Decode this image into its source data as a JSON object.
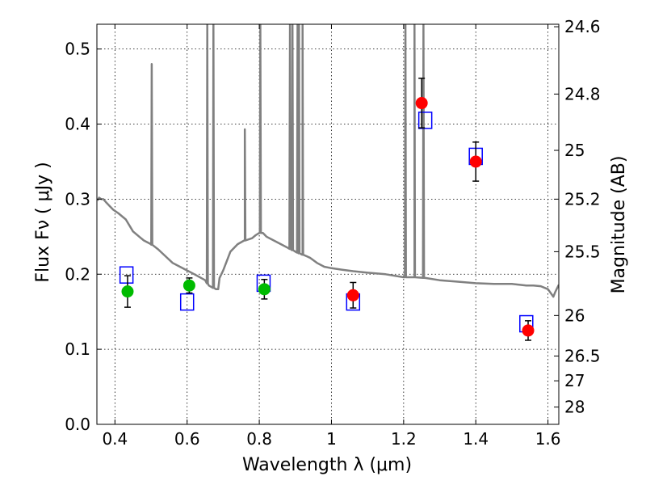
{
  "chart_data": {
    "type": "scatter",
    "xlabel": "Wavelength  λ (μm)",
    "ylabel": "Flux  Fν  ( μJy )",
    "right_ylabel": "Magnitude (AB)",
    "xlim": [
      0.35,
      1.63
    ],
    "ylim": [
      0.0,
      0.533
    ],
    "x_ticks": [
      0.4,
      0.6,
      0.8,
      1.0,
      1.2,
      1.4,
      1.6
    ],
    "x_tick_labels": [
      "0.4",
      "0.6",
      "0.8",
      "1",
      "1.2",
      "1.4",
      "1.6"
    ],
    "y_ticks": [
      0.0,
      0.1,
      0.2,
      0.3,
      0.4,
      0.5
    ],
    "y_tick_labels": [
      "0.0",
      "0.1",
      "0.2",
      "0.3",
      "0.4",
      "0.5"
    ],
    "right_ticks": [
      {
        "flux": 0.5297,
        "label": "24.6"
      },
      {
        "flux": 0.44,
        "label": "24.8"
      },
      {
        "flux": 0.365,
        "label": "25"
      },
      {
        "flux": 0.3,
        "label": "25.2"
      },
      {
        "flux": 0.23,
        "label": "25.5"
      },
      {
        "flux": 0.145,
        "label": "26"
      },
      {
        "flux": 0.091,
        "label": "26.5"
      },
      {
        "flux": 0.058,
        "label": "27"
      },
      {
        "flux": 0.023,
        "label": "28"
      }
    ],
    "grid": true,
    "colors": {
      "spectrum": "#808080",
      "optical_points": "#00bb00",
      "nir_points": "#ff0000",
      "model_boxes": "#0000ff",
      "error_bars": "#000000"
    },
    "spectrum": {
      "continuum": [
        [
          0.352,
          0.298
        ],
        [
          0.356,
          0.302
        ],
        [
          0.362,
          0.3
        ],
        [
          0.368,
          0.3
        ],
        [
          0.375,
          0.296
        ],
        [
          0.385,
          0.291
        ],
        [
          0.395,
          0.286
        ],
        [
          0.41,
          0.281
        ],
        [
          0.43,
          0.273
        ],
        [
          0.45,
          0.257
        ],
        [
          0.47,
          0.249
        ],
        [
          0.48,
          0.245
        ],
        [
          0.5,
          0.24
        ],
        [
          0.52,
          0.233
        ],
        [
          0.54,
          0.224
        ],
        [
          0.56,
          0.215
        ],
        [
          0.58,
          0.21
        ],
        [
          0.6,
          0.205
        ],
        [
          0.62,
          0.2
        ],
        [
          0.65,
          0.192
        ],
        [
          0.66,
          0.185
        ],
        [
          0.68,
          0.18
        ],
        [
          0.686,
          0.18
        ],
        [
          0.69,
          0.195
        ],
        [
          0.7,
          0.205
        ],
        [
          0.72,
          0.23
        ],
        [
          0.74,
          0.24
        ],
        [
          0.76,
          0.245
        ],
        [
          0.78,
          0.248
        ],
        [
          0.79,
          0.252
        ],
        [
          0.8,
          0.255
        ],
        [
          0.81,
          0.255
        ],
        [
          0.82,
          0.25
        ],
        [
          0.84,
          0.245
        ],
        [
          0.86,
          0.24
        ],
        [
          0.88,
          0.235
        ],
        [
          0.9,
          0.23
        ],
        [
          0.92,
          0.226
        ],
        [
          0.94,
          0.222
        ],
        [
          0.96,
          0.215
        ],
        [
          0.98,
          0.21
        ],
        [
          1.0,
          0.208
        ],
        [
          1.03,
          0.206
        ],
        [
          1.06,
          0.204
        ],
        [
          1.1,
          0.202
        ],
        [
          1.15,
          0.2
        ],
        [
          1.2,
          0.196
        ],
        [
          1.21,
          0.196
        ],
        [
          1.23,
          0.196
        ],
        [
          1.26,
          0.195
        ],
        [
          1.3,
          0.192
        ],
        [
          1.35,
          0.19
        ],
        [
          1.4,
          0.188
        ],
        [
          1.45,
          0.187
        ],
        [
          1.5,
          0.187
        ],
        [
          1.52,
          0.186
        ],
        [
          1.54,
          0.185
        ],
        [
          1.56,
          0.185
        ],
        [
          1.58,
          0.184
        ],
        [
          1.6,
          0.18
        ],
        [
          1.615,
          0.17
        ],
        [
          1.62,
          0.176
        ],
        [
          1.63,
          0.186
        ]
      ],
      "emission_lines": [
        {
          "x": 0.502,
          "peak": 0.48
        },
        {
          "x": 0.656,
          "peak": 0.533
        },
        {
          "x": 0.673,
          "peak": 0.533
        },
        {
          "x": 0.76,
          "peak": 0.393
        },
        {
          "x": 0.803,
          "peak": 0.533
        },
        {
          "x": 0.885,
          "peak": 0.533
        },
        {
          "x": 0.892,
          "peak": 0.533
        },
        {
          "x": 0.906,
          "peak": 0.533
        },
        {
          "x": 0.91,
          "peak": 0.533
        },
        {
          "x": 0.92,
          "peak": 0.533
        },
        {
          "x": 1.205,
          "peak": 0.533
        },
        {
          "x": 1.23,
          "peak": 0.533
        },
        {
          "x": 1.255,
          "peak": 0.533
        }
      ]
    },
    "observed_points": [
      {
        "x": 0.435,
        "y": 0.177,
        "err": 0.021,
        "band": "optical"
      },
      {
        "x": 0.606,
        "y": 0.185,
        "err": 0.01,
        "band": "optical"
      },
      {
        "x": 0.814,
        "y": 0.18,
        "err": 0.013,
        "band": "optical"
      },
      {
        "x": 1.06,
        "y": 0.172,
        "err": 0.017,
        "band": "nir"
      },
      {
        "x": 1.25,
        "y": 0.428,
        "err": 0.033,
        "band": "nir"
      },
      {
        "x": 1.4,
        "y": 0.35,
        "err": 0.026,
        "band": "nir"
      },
      {
        "x": 1.545,
        "y": 0.125,
        "err": 0.013,
        "band": "nir"
      }
    ],
    "model_points": [
      {
        "x": 0.432,
        "y": 0.199
      },
      {
        "x": 0.6,
        "y": 0.163
      },
      {
        "x": 0.812,
        "y": 0.188
      },
      {
        "x": 1.06,
        "y": 0.163
      },
      {
        "x": 1.26,
        "y": 0.405
      },
      {
        "x": 1.4,
        "y": 0.357
      },
      {
        "x": 1.54,
        "y": 0.134
      }
    ]
  }
}
